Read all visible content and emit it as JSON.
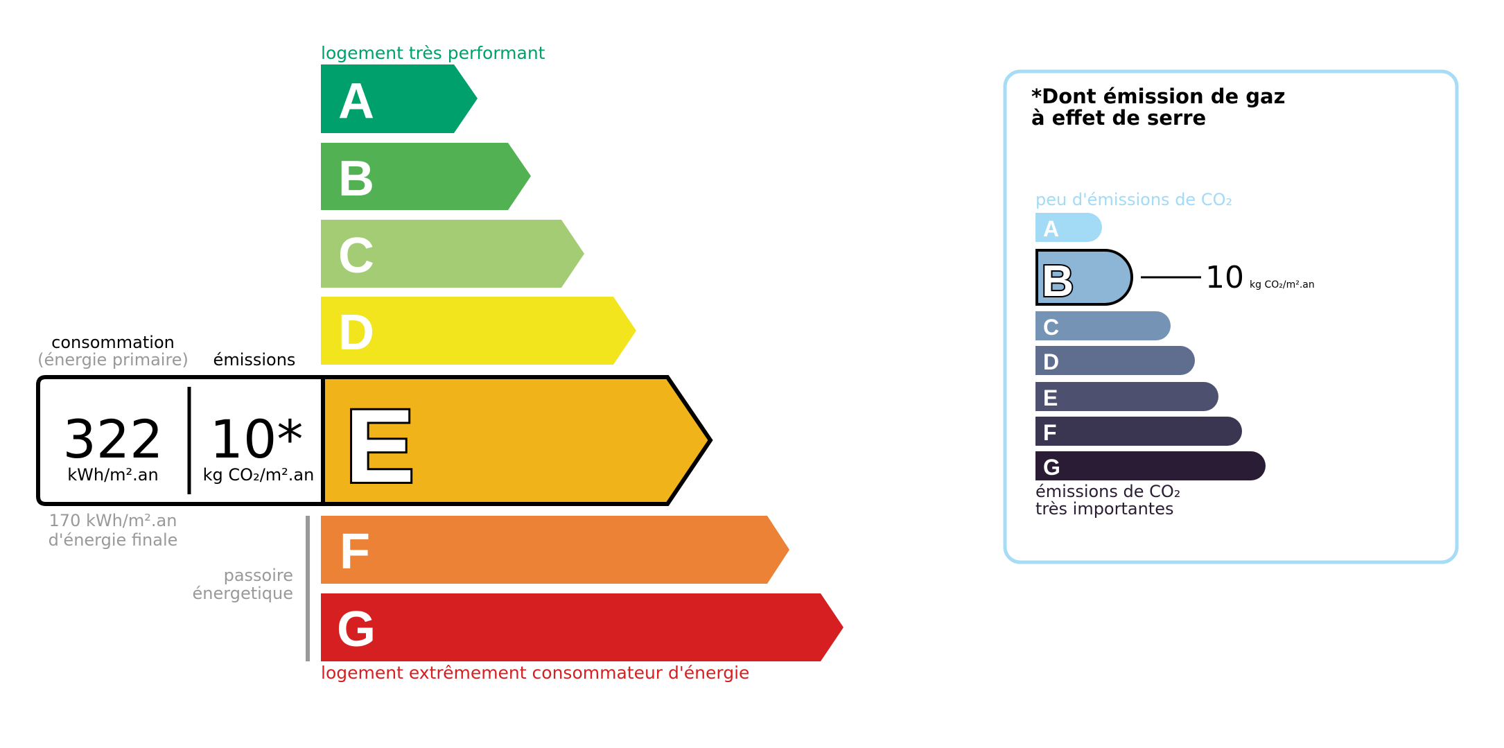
{
  "energy": {
    "top_label": "logement très performant",
    "bottom_label": "logement extrêmement consommateur d'énergie",
    "classes": [
      {
        "letter": "A",
        "color": "#00a06d"
      },
      {
        "letter": "B",
        "color": "#52b153"
      },
      {
        "letter": "C",
        "color": "#a4cc75"
      },
      {
        "letter": "D",
        "color": "#f3e51d"
      },
      {
        "letter": "E",
        "color": "#f0b41a"
      },
      {
        "letter": "F",
        "color": "#eb8235"
      },
      {
        "letter": "G",
        "color": "#d61f20"
      }
    ],
    "current_class": "E",
    "consumption_label": "consommation",
    "consumption_sub": "(énergie primaire)",
    "emissions_label": "émissions",
    "consumption_value": "322",
    "consumption_unit": "kWh/m².an",
    "emissions_value": "10*",
    "emissions_unit": "kg CO₂/m².an",
    "final_energy_line1": "170 kWh/m².an",
    "final_energy_line2": "d'énergie finale",
    "passoire_line1": "passoire",
    "passoire_line2": "énergetique"
  },
  "ges": {
    "title_line1": "*Dont émission de gaz",
    "title_line2": "à effet de serre",
    "top_label": "peu d'émissions de CO₂",
    "bottom_line1": "émissions de CO₂",
    "bottom_line2": "très importantes",
    "classes": [
      {
        "letter": "A",
        "color": "#a3daf6"
      },
      {
        "letter": "B",
        "color": "#8db5d6"
      },
      {
        "letter": "C",
        "color": "#7593b4"
      },
      {
        "letter": "D",
        "color": "#5f6d8f"
      },
      {
        "letter": "E",
        "color": "#4e506f"
      },
      {
        "letter": "F",
        "color": "#3a3652"
      },
      {
        "letter": "G",
        "color": "#2a1c35"
      }
    ],
    "current_class": "B",
    "value": "10",
    "unit": "kg CO₂/m².an",
    "border_color": "#a6dcf6"
  }
}
